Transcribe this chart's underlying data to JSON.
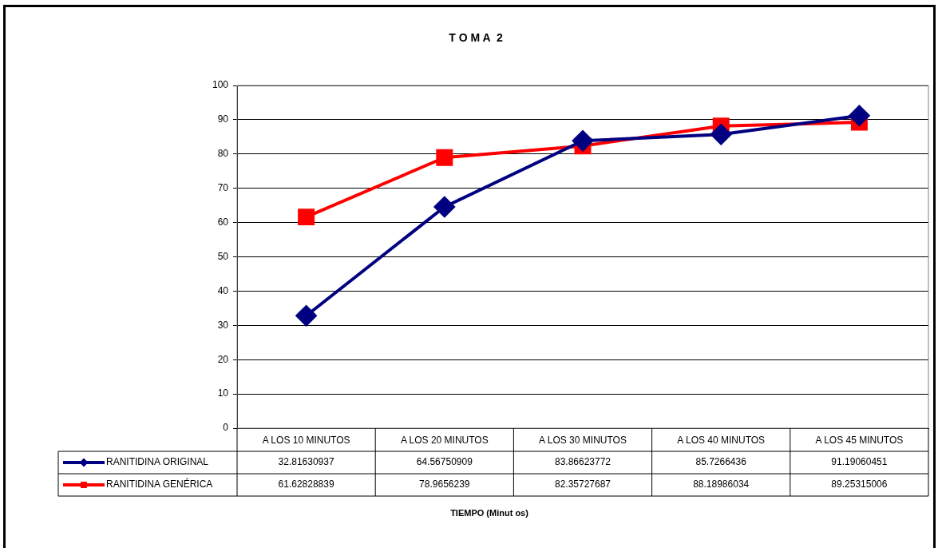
{
  "chart_data": {
    "type": "line",
    "title": "T O M A  2",
    "annotations": [
      "TIEMPO (Minut os)"
    ],
    "categories": [
      "A LOS 10 MINUTOS",
      "A LOS 20 MINUTOS",
      "A LOS 30 MINUTOS",
      "A LOS 40 MINUTOS",
      "A LOS 45 MINUTOS"
    ],
    "series": [
      {
        "name": "RANITIDINA ORIGINAL",
        "color": "#000080",
        "marker": "diamond",
        "values": [
          32.81630937,
          64.56750909,
          83.86623772,
          85.7266436,
          91.19060451
        ]
      },
      {
        "name": "RANITIDINA GENÉRICA",
        "color": "#ff0000",
        "marker": "square",
        "values": [
          61.62828839,
          78.9656239,
          82.35727687,
          88.18986034,
          89.25315006
        ]
      }
    ],
    "ylim": [
      0,
      100
    ],
    "yticks": [
      0,
      10,
      20,
      30,
      40,
      50,
      60,
      70,
      80,
      90,
      100
    ],
    "grid": "y",
    "legend": "bottom",
    "data_labels": true,
    "line_style": "solid"
  }
}
